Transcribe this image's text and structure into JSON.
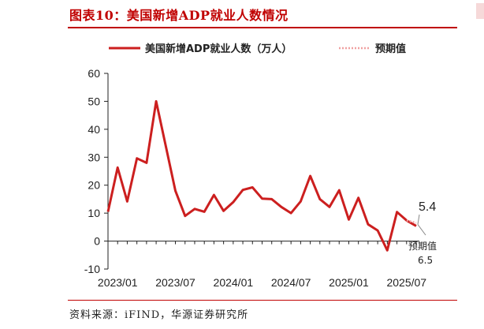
{
  "title": "图表10：美国新增ADP就业人数情况",
  "source": "资料来源：iFIND，华源证券研究所",
  "colors": {
    "accent": "#c00000",
    "series": "#cc1f1f",
    "expected": "#f0a0a0"
  },
  "legend": {
    "actual": "美国新增ADP就业人数（万人）",
    "expected": "预期值"
  },
  "chart_data": {
    "type": "line",
    "ylim": [
      -10,
      60
    ],
    "yticks": [
      -10,
      0,
      10,
      20,
      30,
      40,
      50,
      60
    ],
    "xtick_labels": [
      "2023/01",
      "2023/07",
      "2024/01",
      "2024/07",
      "2025/01",
      "2025/07"
    ],
    "x": [
      "2022/12",
      "2023/01",
      "2023/02",
      "2023/03",
      "2023/04",
      "2023/05",
      "2023/06",
      "2023/07",
      "2023/08",
      "2023/09",
      "2023/10",
      "2023/11",
      "2023/12",
      "2024/01",
      "2024/02",
      "2024/03",
      "2024/04",
      "2024/05",
      "2024/06",
      "2024/07",
      "2024/08",
      "2024/09",
      "2024/10",
      "2024/11",
      "2024/12",
      "2025/01",
      "2025/02",
      "2025/03",
      "2025/04",
      "2025/05",
      "2025/06",
      "2025/07",
      "2025/08"
    ],
    "series": [
      {
        "name": "美国新增ADP就业人数（万人）",
        "values": [
          10.5,
          26.3,
          14.2,
          29.6,
          28.0,
          50.0,
          34.0,
          18.0,
          9.0,
          11.5,
          10.5,
          16.5,
          10.8,
          13.9,
          18.3,
          19.2,
          15.2,
          15.0,
          12.2,
          10.0,
          14.2,
          23.3,
          15.0,
          12.2,
          18.2,
          7.7,
          15.5,
          6.0,
          3.8,
          -3.3,
          10.4,
          7.4,
          5.4
        ]
      },
      {
        "name": "预期值",
        "x": [
          "2025/07",
          "2025/08"
        ],
        "values": [
          7.4,
          6.5
        ]
      }
    ],
    "annotations": {
      "last_value": "5.4",
      "expected_label": "预期值",
      "expected_value": "6.5"
    }
  }
}
